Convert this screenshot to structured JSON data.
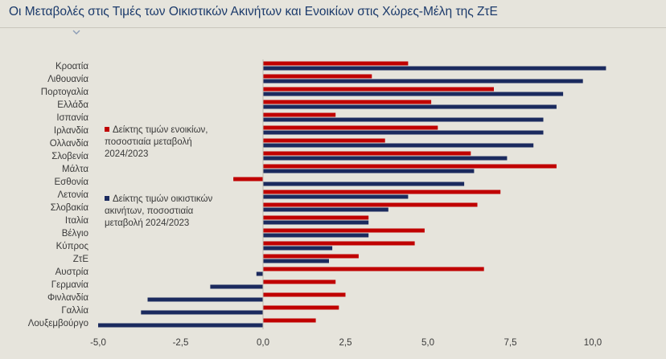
{
  "title": "Οι Μεταβολές στις Τιμές των Οικιστικών Ακινήτων και Ενοικίων στις Χώρες-Μέλη της ΖτΕ",
  "colors": {
    "rent": "#c00000",
    "house": "#1b2a5e",
    "background": "#e6e4dc"
  },
  "legend": {
    "rent_label": "Δείκτης τιμών ενοικίων, ποσοστιαία μεταβολή 2024/2023",
    "house_label": "Δείκτης τιμών οικιστικών ακινήτων, ποσοστιαία μεταβολή 2024/2023"
  },
  "chart_data": {
    "type": "bar",
    "orientation": "horizontal",
    "categories": [
      "Κροατία",
      "Λιθουανία",
      "Πορτογαλία",
      "Ελλάδα",
      "Ισπανία",
      "Ιρλανδία",
      "Ολλανδία",
      "Σλοβενία",
      "Μάλτα",
      "Εσθονία",
      "Λετονία",
      "Σλοβακία",
      "Ιταλία",
      "Βέλγιο",
      "Κύπρος",
      "ΖτΕ",
      "Αυστρία",
      "Γερμανία",
      "Φινλανδία",
      "Γαλλία",
      "Λουξεμβούργο"
    ],
    "series": [
      {
        "name": "Δείκτης τιμών ενοικίων, ποσοστιαία μεταβολή 2024/2023",
        "color": "#c00000",
        "values": [
          4.4,
          3.3,
          7.0,
          5.1,
          2.2,
          5.3,
          3.7,
          6.3,
          8.9,
          -0.9,
          7.2,
          6.5,
          3.2,
          4.9,
          4.6,
          2.9,
          6.7,
          2.2,
          2.5,
          2.3,
          1.6
        ]
      },
      {
        "name": "Δείκτης τιμών οικιστικών ακινήτων, ποσοστιαία μεταβολή 2024/2023",
        "color": "#1b2a5e",
        "values": [
          10.4,
          9.7,
          9.1,
          8.9,
          8.5,
          8.5,
          8.2,
          7.4,
          6.4,
          6.1,
          4.4,
          3.8,
          3.2,
          3.2,
          2.1,
          2.0,
          -0.2,
          -1.6,
          -3.5,
          -3.7,
          -5.0
        ]
      }
    ],
    "xlim": [
      -5.0,
      10.0
    ],
    "xticks": [
      "-5,0",
      "-2,5",
      "0,0",
      "2,5",
      "5,0",
      "7,5",
      "10,0"
    ],
    "xtick_values": [
      -5.0,
      -2.5,
      0.0,
      2.5,
      5.0,
      7.5,
      10.0
    ],
    "grid": false
  }
}
